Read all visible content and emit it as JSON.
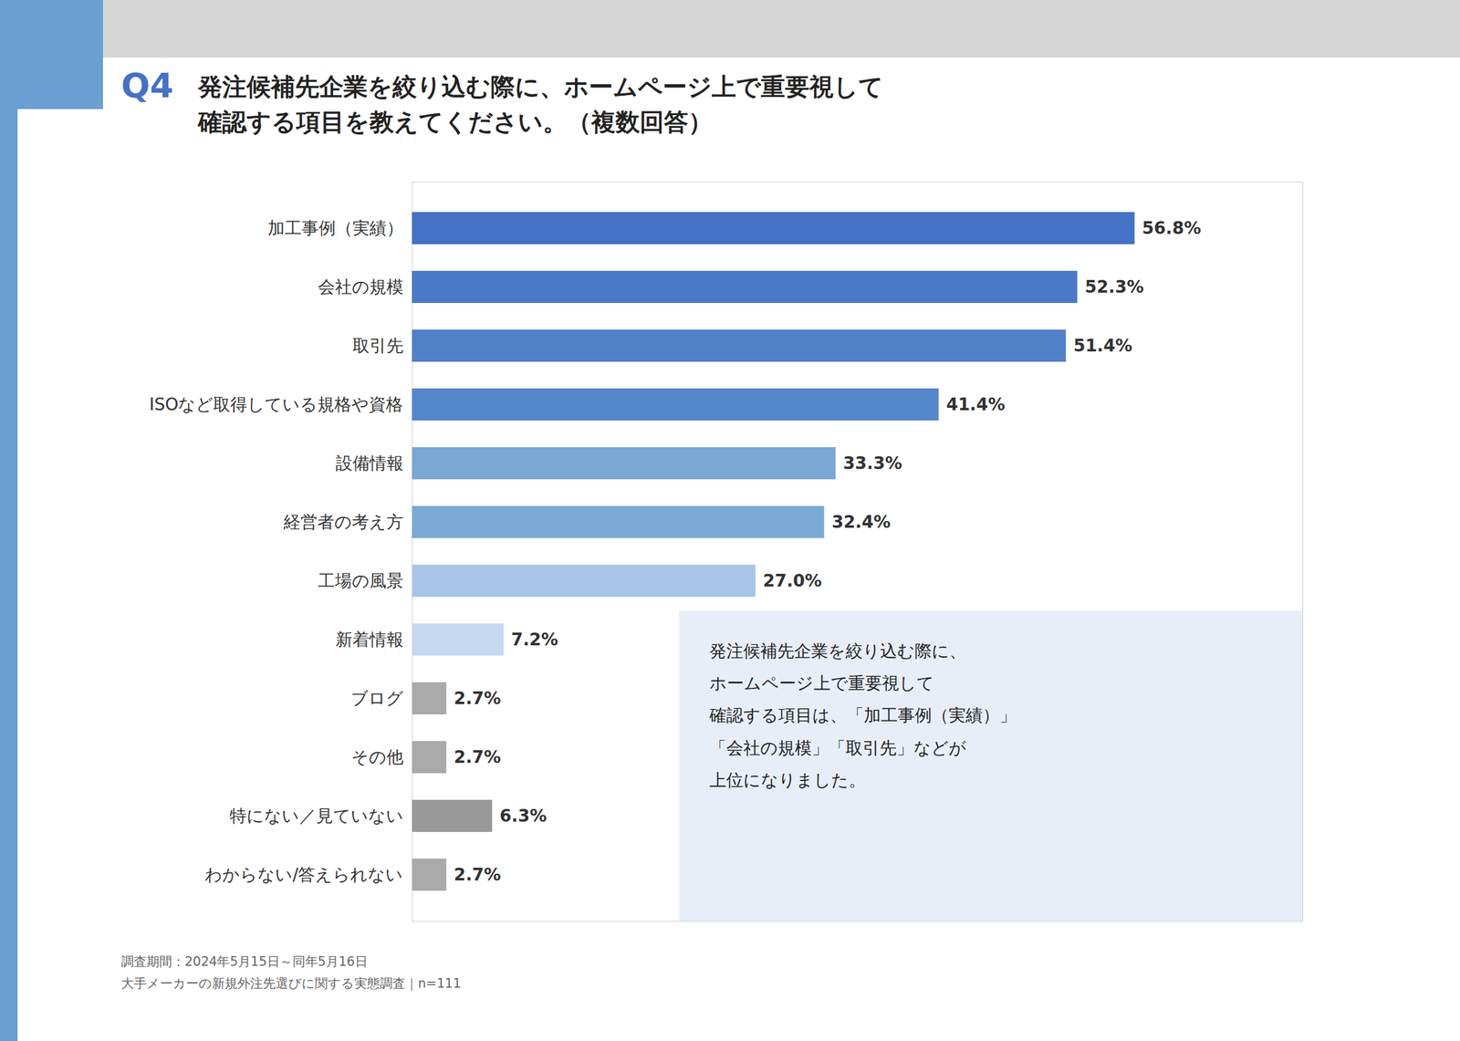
{
  "chart_data": {
    "type": "bar",
    "orientation": "horizontal",
    "title": "Q4",
    "subtitle": "発注候補先企業を絞り込む際に、ホームページ上で重要視して\n確認する項目を教えてください。（複数回答）",
    "categories": [
      "加工事例（実績）",
      "会社の規模",
      "取引先",
      "ISOなど取得している規格や資格",
      "設備情報",
      "経営者の考え方",
      "工場の風景",
      "新着情報",
      "ブログ",
      "その他",
      "特にない／見ていない",
      "わからない/答えられない"
    ],
    "values": [
      56.8,
      52.3,
      51.4,
      41.4,
      33.3,
      32.4,
      27.0,
      7.2,
      2.7,
      2.7,
      6.3,
      2.7
    ],
    "value_labels": [
      "56.8%",
      "52.3%",
      "51.4%",
      "41.4%",
      "33.3%",
      "32.4%",
      "27.0%",
      "7.2%",
      "2.7%",
      "2.7%",
      "6.3%",
      "2.7%"
    ],
    "colors": [
      "#4472C4",
      "#4A7AC7",
      "#5080C8",
      "#5587CB",
      "#7BA7D4",
      "#7AAAD5",
      "#A9C4E8",
      "#C5D8F0",
      "#AAAAAA",
      "#AAAAAA",
      "#999999",
      "#AAAAAA"
    ],
    "data_labels": true,
    "xlim": [
      0,
      70
    ],
    "tick_labels": "y",
    "grid": false,
    "annotations": [
      "発注候補先企業を絞り込む際に、\nホームページ上で重要視して\n確認する項目は、「加工事例（実績）」\n「会社の規模」「取引先」などが\n上位になりました。"
    ],
    "caption": "調査期間：2024年5月15日～同年5月16日\n大手メーカーの新規外注先選びに関する実態調査｜n=111"
  }
}
